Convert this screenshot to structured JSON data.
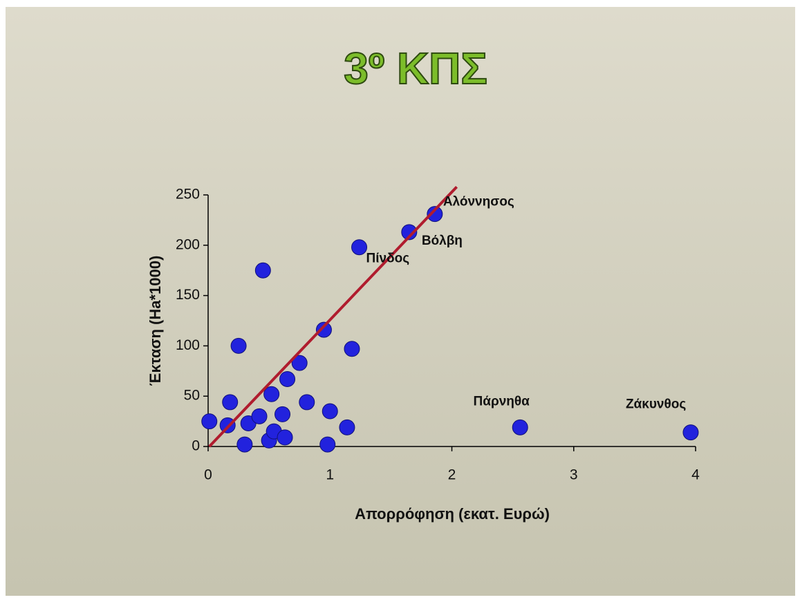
{
  "chart_data": {
    "type": "scatter",
    "title": "3º ΚΠΣ",
    "x_label": "Απορρόφηση (εκατ. Ευρώ)",
    "y_label": "Έκταση (Ha*1000)",
    "x": [
      0.01,
      0.16,
      0.18,
      0.25,
      0.3,
      0.33,
      0.42,
      0.45,
      0.5,
      0.52,
      0.54,
      0.61,
      0.63,
      0.65,
      0.75,
      0.81,
      0.95,
      0.98,
      1.0,
      1.14,
      1.18,
      1.24,
      1.65,
      1.86,
      2.56,
      3.96
    ],
    "values": [
      25,
      21,
      44,
      100,
      2,
      23,
      30,
      175,
      6,
      52,
      15,
      32,
      9,
      67,
      83,
      44,
      116,
      2,
      35,
      19,
      97,
      198,
      213,
      231,
      19,
      14
    ],
    "labels": [
      null,
      null,
      null,
      null,
      null,
      null,
      null,
      null,
      null,
      null,
      null,
      null,
      null,
      null,
      null,
      null,
      null,
      null,
      null,
      null,
      null,
      "Πίνδος",
      "Βόλβη",
      "Αλόννησος",
      "Πάρνηθα",
      "Ζάκυνθος"
    ],
    "color": "#2222dd",
    "trendline": {
      "x": [
        0.01,
        2.04
      ],
      "values": [
        0,
        258
      ],
      "color": "#b01c2e"
    },
    "xlim": [
      0,
      4
    ],
    "ylim": [
      0,
      250
    ],
    "xticks": [
      0,
      1,
      2,
      3,
      4
    ],
    "yticks": [
      0,
      50,
      100,
      150,
      200,
      250
    ],
    "grid": false
  }
}
